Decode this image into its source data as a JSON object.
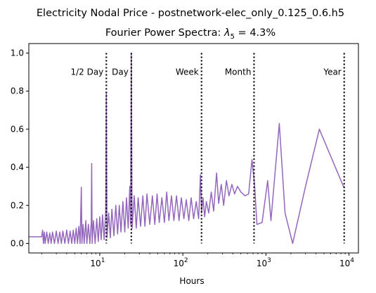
{
  "chart_data": {
    "type": "line",
    "title": "Electricity Nodal Price - postnetwork-elec_only_0.125_0.6.h5",
    "subtitle_prefix": "Fourier Power Spectra: ",
    "subtitle_symbol": "λ",
    "subtitle_subscript": "5",
    "subtitle_suffix": " = 4.3%",
    "xlabel": "Hours",
    "ylabel": "",
    "xscale": "log",
    "xlim": [
      1.4,
      13000
    ],
    "ylim": [
      -0.05,
      1.05
    ],
    "grid": false,
    "line_color": "#9467bd",
    "x_ticks": [
      {
        "label_base": "10",
        "label_exp": "1",
        "value": 10
      },
      {
        "label_base": "10",
        "label_exp": "2",
        "value": 100
      },
      {
        "label_base": "10",
        "label_exp": "3",
        "value": 1000
      },
      {
        "label_base": "10",
        "label_exp": "4",
        "value": 10000
      }
    ],
    "y_ticks": [
      {
        "label": "0.0",
        "value": 0.0
      },
      {
        "label": "0.2",
        "value": 0.2
      },
      {
        "label": "0.4",
        "value": 0.4
      },
      {
        "label": "0.6",
        "value": 0.6
      },
      {
        "label": "0.8",
        "value": 0.8
      },
      {
        "label": "1.0",
        "value": 1.0
      }
    ],
    "markers": [
      {
        "label": "1/2 Day",
        "x": 12,
        "label_side": "left"
      },
      {
        "label": "Day",
        "x": 24,
        "label_side": "left"
      },
      {
        "label": "Week",
        "x": 168,
        "label_side": "left"
      },
      {
        "label": "Month",
        "x": 720,
        "label_side": "left"
      },
      {
        "label": "Year",
        "x": 8760,
        "label_side": "left"
      }
    ],
    "series": [
      {
        "points": [
          [
            1.4,
            0.035
          ],
          [
            2.0,
            0.035
          ],
          [
            2.05,
            0.07
          ],
          [
            2.1,
            0.0
          ],
          [
            2.15,
            0.06
          ],
          [
            2.2,
            0.0
          ],
          [
            2.3,
            0.06
          ],
          [
            2.4,
            0.0
          ],
          [
            2.5,
            0.055
          ],
          [
            2.6,
            0.0
          ],
          [
            2.7,
            0.06
          ],
          [
            2.85,
            0.0
          ],
          [
            3.0,
            0.065
          ],
          [
            3.15,
            0.0
          ],
          [
            3.3,
            0.06
          ],
          [
            3.45,
            0.0
          ],
          [
            3.6,
            0.065
          ],
          [
            3.8,
            0.0
          ],
          [
            4.0,
            0.07
          ],
          [
            4.2,
            0.0
          ],
          [
            4.4,
            0.065
          ],
          [
            4.6,
            0.0
          ],
          [
            4.8,
            0.07
          ],
          [
            5.0,
            0.0
          ],
          [
            5.2,
            0.08
          ],
          [
            5.4,
            0.0
          ],
          [
            5.6,
            0.09
          ],
          [
            5.8,
            0.0
          ],
          [
            6.0,
            0.295
          ],
          [
            6.1,
            0.0
          ],
          [
            6.3,
            0.1
          ],
          [
            6.5,
            0.0
          ],
          [
            6.8,
            0.12
          ],
          [
            7.0,
            0.0
          ],
          [
            7.3,
            0.1
          ],
          [
            7.6,
            0.0
          ],
          [
            7.9,
            0.11
          ],
          [
            8.0,
            0.42
          ],
          [
            8.1,
            0.0
          ],
          [
            8.4,
            0.12
          ],
          [
            8.8,
            0.0
          ],
          [
            9.2,
            0.13
          ],
          [
            9.6,
            0.01
          ],
          [
            10.0,
            0.14
          ],
          [
            10.4,
            0.02
          ],
          [
            10.8,
            0.15
          ],
          [
            11.3,
            0.02
          ],
          [
            11.8,
            0.17
          ],
          [
            12.0,
            0.79
          ],
          [
            12.2,
            0.03
          ],
          [
            12.8,
            0.16
          ],
          [
            13.4,
            0.03
          ],
          [
            14.0,
            0.18
          ],
          [
            14.8,
            0.04
          ],
          [
            15.6,
            0.2
          ],
          [
            16.4,
            0.05
          ],
          [
            17.2,
            0.2
          ],
          [
            18.0,
            0.06
          ],
          [
            19.0,
            0.22
          ],
          [
            20.0,
            0.06
          ],
          [
            21.0,
            0.24
          ],
          [
            22.0,
            0.08
          ],
          [
            23.0,
            0.3
          ],
          [
            23.5,
            0.1
          ],
          [
            24.0,
            1.0
          ],
          [
            24.5,
            0.08
          ],
          [
            26.0,
            0.25
          ],
          [
            27.5,
            0.08
          ],
          [
            29.0,
            0.24
          ],
          [
            31.0,
            0.09
          ],
          [
            33.0,
            0.25
          ],
          [
            35.0,
            0.09
          ],
          [
            37.0,
            0.26
          ],
          [
            40.0,
            0.1
          ],
          [
            43.0,
            0.25
          ],
          [
            46.0,
            0.1
          ],
          [
            49.0,
            0.26
          ],
          [
            52.0,
            0.11
          ],
          [
            56.0,
            0.24
          ],
          [
            60.0,
            0.11
          ],
          [
            64.0,
            0.27
          ],
          [
            68.0,
            0.12
          ],
          [
            73.0,
            0.25
          ],
          [
            78.0,
            0.12
          ],
          [
            84.0,
            0.25
          ],
          [
            90.0,
            0.12
          ],
          [
            96.0,
            0.24
          ],
          [
            103.0,
            0.13
          ],
          [
            110.0,
            0.23
          ],
          [
            118.0,
            0.12
          ],
          [
            126.0,
            0.24
          ],
          [
            135.0,
            0.13
          ],
          [
            145.0,
            0.22
          ],
          [
            155.0,
            0.13
          ],
          [
            163.0,
            0.36
          ],
          [
            168.0,
            0.16
          ],
          [
            175.0,
            0.24
          ],
          [
            183.0,
            0.14
          ],
          [
            192.0,
            0.22
          ],
          [
            205.0,
            0.16
          ],
          [
            220.0,
            0.27
          ],
          [
            235.0,
            0.17
          ],
          [
            255.0,
            0.37
          ],
          [
            270.0,
            0.21
          ],
          [
            290.0,
            0.31
          ],
          [
            310.0,
            0.2
          ],
          [
            335.0,
            0.33
          ],
          [
            360.0,
            0.25
          ],
          [
            390.0,
            0.31
          ],
          [
            420.0,
            0.26
          ],
          [
            455.0,
            0.3
          ],
          [
            500.0,
            0.27
          ],
          [
            560.0,
            0.25
          ],
          [
            620.0,
            0.26
          ],
          [
            680.0,
            0.44
          ],
          [
            730.0,
            0.31
          ],
          [
            780.0,
            0.1
          ],
          [
            900.0,
            0.11
          ],
          [
            1050.0,
            0.33
          ],
          [
            1150.0,
            0.12
          ],
          [
            1450.0,
            0.63
          ],
          [
            1700.0,
            0.16
          ],
          [
            2100.0,
            0.0
          ],
          [
            3000.0,
            0.3
          ],
          [
            4400.0,
            0.6
          ],
          [
            8760.0,
            0.29
          ]
        ]
      }
    ]
  }
}
